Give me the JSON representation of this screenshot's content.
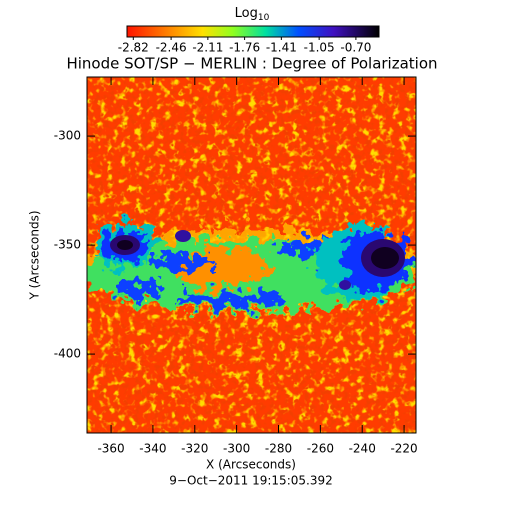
{
  "chart_data": {
    "type": "heatmap",
    "title": "Hinode SOT/SP − MERLIN : Degree of Polarization",
    "xlabel": "X (Arcseconds)",
    "ylabel": "Y (Arcseconds)",
    "footer": "9−Oct−2011 19:15:05.392",
    "colorbar": {
      "label": "Log",
      "label_sub": "10",
      "lim": [
        -2.88,
        -0.48
      ],
      "ticks": [
        -2.82,
        -2.46,
        -2.11,
        -1.76,
        -1.41,
        -1.05,
        {
          "value": -0.7,
          "label": "-0.70"
        }
      ]
    },
    "xlim": [
      -371.5,
      -214.3
    ],
    "xticks": [
      -360,
      -340,
      -320,
      -300,
      -280,
      -260,
      -240,
      -220
    ],
    "ylim": [
      -436.2,
      -272.9
    ],
    "yticks": [
      -300,
      -350,
      -400
    ]
  }
}
